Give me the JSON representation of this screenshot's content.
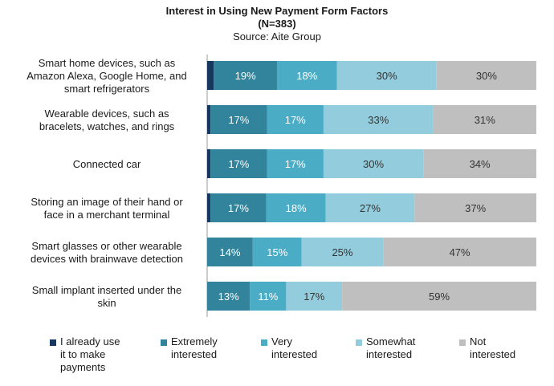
{
  "chart_data": {
    "type": "bar",
    "orientation": "horizontal",
    "stacked": true,
    "title": "Interest in Using New Payment Form Factors",
    "subtitle": "(N=383)",
    "source": "Source: Aite Group",
    "categories": [
      "Smart home devices, such as\nAmazon Alexa, Google Home, and\nsmart refrigerators",
      "Wearable devices, such as\nbracelets, watches, and rings",
      "Connected car",
      "Storing an image of their hand or\nface in a merchant terminal",
      "Smart glasses or other wearable\ndevices with brainwave detection",
      "Small implant inserted under the\nskin"
    ],
    "series": [
      {
        "name": "I already use\nit to make\npayments",
        "color": "#17375e",
        "values": [
          2,
          1,
          1,
          1,
          0,
          0
        ],
        "labels": [
          "",
          "",
          "",
          "",
          "",
          ""
        ]
      },
      {
        "name": "Extremely\ninterested",
        "color": "#31849b",
        "values": [
          19,
          17,
          17,
          17,
          14,
          13
        ],
        "labels": [
          "19%",
          "17%",
          "17%",
          "17%",
          "14%",
          "13%"
        ]
      },
      {
        "name": "Very\ninterested",
        "color": "#4bacc6",
        "values": [
          18,
          17,
          17,
          18,
          15,
          11
        ],
        "labels": [
          "18%",
          "17%",
          "17%",
          "18%",
          "15%",
          "11%"
        ]
      },
      {
        "name": "Somewhat\ninterested",
        "color": "#93cddd",
        "values": [
          30,
          33,
          30,
          27,
          25,
          17
        ],
        "labels": [
          "30%",
          "33%",
          "30%",
          "27%",
          "25%",
          "17%"
        ]
      },
      {
        "name": "Not\ninterested",
        "color": "#bfbfbf",
        "values": [
          30,
          31,
          34,
          37,
          47,
          59
        ],
        "labels": [
          "30%",
          "31%",
          "34%",
          "37%",
          "47%",
          "59%"
        ]
      }
    ],
    "xlim": [
      0,
      100
    ],
    "grid": false,
    "legend_position": "bottom"
  }
}
